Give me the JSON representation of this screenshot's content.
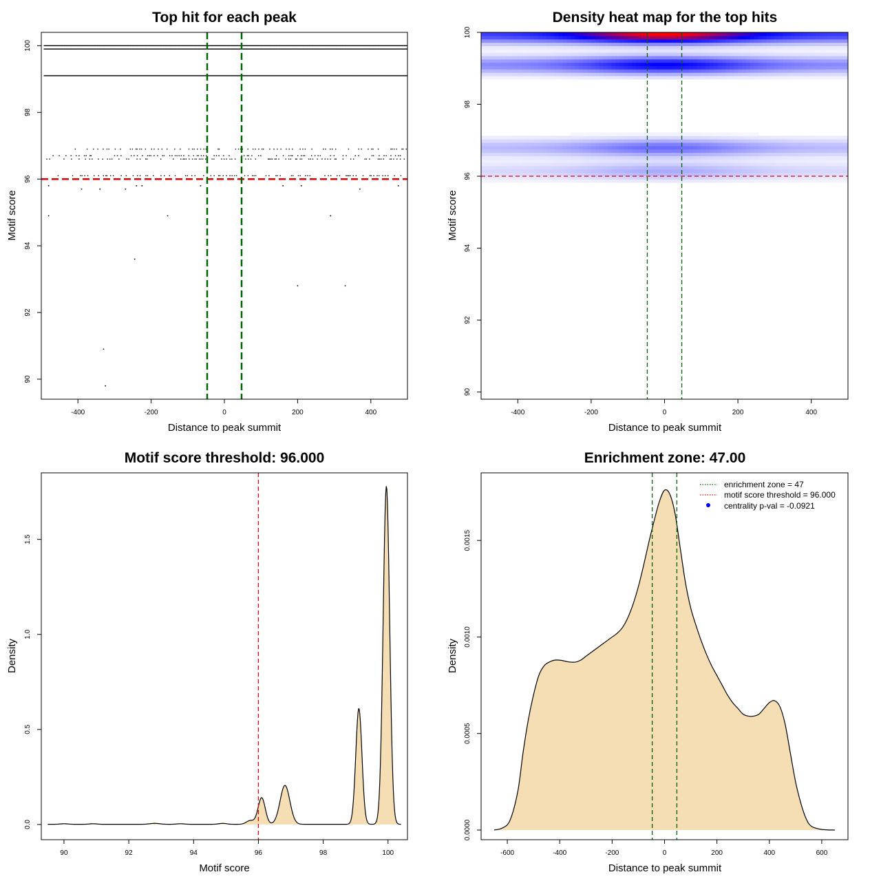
{
  "chart_data": [
    {
      "type": "scatter",
      "title": "Top hit for each peak",
      "xlabel": "Distance to peak summit",
      "ylabel": "Motif score",
      "xlim": [
        -500,
        500
      ],
      "ylim": [
        89.4,
        100.4
      ],
      "xticks": [
        -400,
        -200,
        0,
        200,
        400
      ],
      "yticks": [
        90,
        92,
        94,
        96,
        98,
        100
      ],
      "rows": [
        {
          "y": 100.0,
          "x_from": -492,
          "x_to": 498,
          "style": "dense"
        },
        {
          "y": 99.9,
          "x_from": -492,
          "x_to": 498,
          "style": "dense"
        },
        {
          "y": 99.1,
          "x_from": -492,
          "x_to": 498,
          "style": "dense"
        },
        {
          "y": 96.9,
          "x_from": -430,
          "x_to": 498,
          "style": "sparse"
        },
        {
          "y": 96.7,
          "x_from": -485,
          "x_to": 498,
          "style": "sparse"
        },
        {
          "y": 96.6,
          "x_from": -485,
          "x_to": 498,
          "style": "sparse"
        },
        {
          "y": 96.1,
          "x_from": -485,
          "x_to": 498,
          "style": "sparse"
        }
      ],
      "points": [
        {
          "x": -480,
          "y": 95.8
        },
        {
          "x": -390,
          "y": 95.7
        },
        {
          "x": -340,
          "y": 95.7
        },
        {
          "x": -270,
          "y": 95.7
        },
        {
          "x": -240,
          "y": 95.8
        },
        {
          "x": -225,
          "y": 95.8
        },
        {
          "x": -65,
          "y": 95.8
        },
        {
          "x": 160,
          "y": 95.8
        },
        {
          "x": 210,
          "y": 95.8
        },
        {
          "x": 370,
          "y": 95.7
        },
        {
          "x": 475,
          "y": 95.8
        },
        {
          "x": -480,
          "y": 94.9
        },
        {
          "x": -155,
          "y": 94.9
        },
        {
          "x": 290,
          "y": 94.9
        },
        {
          "x": -245,
          "y": 93.6
        },
        {
          "x": 200,
          "y": 92.8
        },
        {
          "x": 330,
          "y": 92.8
        },
        {
          "x": -330,
          "y": 90.9
        },
        {
          "x": -325,
          "y": 89.8
        }
      ],
      "hlines": [
        {
          "y": 96,
          "color": "#e00000",
          "style": "dashed"
        }
      ],
      "vlines": [
        {
          "x": -47,
          "color": "#006400",
          "style": "dashed"
        },
        {
          "x": 47,
          "color": "#006400",
          "style": "dashed"
        }
      ]
    },
    {
      "type": "heatmap",
      "title": "Density heat map for the top hits",
      "xlabel": "Distance to peak summit",
      "ylabel": "Motif score",
      "xlim": [
        -500,
        500
      ],
      "ylim": [
        89.8,
        100.0
      ],
      "xticks": [
        -400,
        -200,
        0,
        200,
        400
      ],
      "yticks": [
        90,
        92,
        94,
        96,
        98,
        100
      ],
      "colors": {
        "low": "#ffffff",
        "mid": "#0000ff",
        "high": "#ff0000"
      },
      "bands": [
        {
          "y": 99.95,
          "weight": 1.0
        },
        {
          "y": 99.1,
          "weight": 0.6
        },
        {
          "y": 96.8,
          "weight": 0.35
        },
        {
          "y": 96.15,
          "weight": 0.2
        }
      ],
      "hlines": [
        {
          "y": 96,
          "color": "#e00000",
          "style": "dashed"
        }
      ],
      "vlines": [
        {
          "x": -47,
          "color": "#006400",
          "style": "dashed"
        },
        {
          "x": 47,
          "color": "#006400",
          "style": "dashed"
        }
      ]
    },
    {
      "type": "area",
      "title": "Motif score threshold: 96.000",
      "xlabel": "Motif score",
      "ylabel": "Density",
      "xlim": [
        89.3,
        100.6
      ],
      "ylim": [
        -0.08,
        1.85
      ],
      "xticks": [
        90,
        92,
        94,
        96,
        98,
        100
      ],
      "yticks": [
        0.0,
        0.5,
        1.0,
        1.5
      ],
      "ytick_labels": [
        "0.0",
        "0.5",
        "1.0",
        "1.5"
      ],
      "fill": "#f5deb3",
      "x_range": [
        89.5,
        100.4
      ],
      "baseline": 0.001,
      "peaks": [
        {
          "x": 90.0,
          "y": 0.003,
          "sd": 0.12
        },
        {
          "x": 90.9,
          "y": 0.003,
          "sd": 0.12
        },
        {
          "x": 92.8,
          "y": 0.005,
          "sd": 0.15
        },
        {
          "x": 93.6,
          "y": 0.003,
          "sd": 0.12
        },
        {
          "x": 94.9,
          "y": 0.005,
          "sd": 0.12
        },
        {
          "x": 95.75,
          "y": 0.02,
          "sd": 0.12
        },
        {
          "x": 96.1,
          "y": 0.14,
          "sd": 0.11
        },
        {
          "x": 96.82,
          "y": 0.205,
          "sd": 0.15
        },
        {
          "x": 99.1,
          "y": 0.61,
          "sd": 0.095
        },
        {
          "x": 99.95,
          "y": 1.78,
          "sd": 0.1
        }
      ],
      "vlines": [
        {
          "x": 96,
          "color": "#e00000",
          "style": "dashed"
        }
      ]
    },
    {
      "type": "area",
      "title": "Enrichment zone: 47.00",
      "xlabel": "Distance to peak summit",
      "ylabel": "Density",
      "xlim": [
        -700,
        700
      ],
      "ylim": [
        -5e-05,
        0.00185
      ],
      "xticks": [
        -600,
        -400,
        -200,
        0,
        200,
        400,
        600
      ],
      "yticks": [
        0.0,
        0.0005,
        0.001,
        0.0015
      ],
      "ytick_labels": [
        "0.0000",
        "0.0005",
        "0.0010",
        "0.0015"
      ],
      "fill": "#f5deb3",
      "points": [
        [
          -650,
          0.0
        ],
        [
          -620,
          1e-05
        ],
        [
          -590,
          5e-05
        ],
        [
          -560,
          0.0002
        ],
        [
          -540,
          0.0004
        ],
        [
          -520,
          0.00057
        ],
        [
          -500,
          0.0007
        ],
        [
          -480,
          0.0008
        ],
        [
          -460,
          0.00085
        ],
        [
          -440,
          0.00087
        ],
        [
          -420,
          0.00088
        ],
        [
          -400,
          0.00088
        ],
        [
          -380,
          0.000875
        ],
        [
          -360,
          0.00087
        ],
        [
          -340,
          0.00087
        ],
        [
          -320,
          0.00088
        ],
        [
          -300,
          0.0009
        ],
        [
          -280,
          0.00092
        ],
        [
          -260,
          0.00094
        ],
        [
          -240,
          0.00096
        ],
        [
          -220,
          0.00098
        ],
        [
          -200,
          0.001
        ],
        [
          -180,
          0.00102
        ],
        [
          -160,
          0.00105
        ],
        [
          -140,
          0.0011
        ],
        [
          -120,
          0.00117
        ],
        [
          -100,
          0.00126
        ],
        [
          -80,
          0.00137
        ],
        [
          -60,
          0.00149
        ],
        [
          -40,
          0.0016
        ],
        [
          -20,
          0.0017
        ],
        [
          0,
          0.00176
        ],
        [
          20,
          0.00174
        ],
        [
          40,
          0.00164
        ],
        [
          60,
          0.00146
        ],
        [
          80,
          0.00128
        ],
        [
          100,
          0.00115
        ],
        [
          120,
          0.00106
        ],
        [
          140,
          0.00098
        ],
        [
          160,
          0.00091
        ],
        [
          180,
          0.00085
        ],
        [
          200,
          0.0008
        ],
        [
          220,
          0.00075
        ],
        [
          240,
          0.0007
        ],
        [
          260,
          0.00066
        ],
        [
          280,
          0.00063
        ],
        [
          300,
          0.0006
        ],
        [
          320,
          0.00059
        ],
        [
          340,
          0.00059
        ],
        [
          360,
          0.0006
        ],
        [
          380,
          0.00063
        ],
        [
          400,
          0.00066
        ],
        [
          420,
          0.00067
        ],
        [
          440,
          0.00064
        ],
        [
          460,
          0.00055
        ],
        [
          480,
          0.0004
        ],
        [
          500,
          0.00025
        ],
        [
          520,
          0.00014
        ],
        [
          540,
          6e-05
        ],
        [
          560,
          2e-05
        ],
        [
          600,
          3e-06
        ],
        [
          650,
          0.0
        ]
      ],
      "vlines": [
        {
          "x": -47,
          "color": "#006400",
          "style": "dashed"
        },
        {
          "x": 47,
          "color": "#006400",
          "style": "dashed"
        }
      ],
      "legend": [
        {
          "label": "enrichment zone = 47",
          "color": "#006400",
          "kind": "dotted-line"
        },
        {
          "label": "motif score threshold = 96.000",
          "color": "#e00000",
          "kind": "dotted-line"
        },
        {
          "label": "centrality p-val = -0.0921",
          "color": "#0000ff",
          "kind": "point"
        }
      ],
      "legend_position": "top-right"
    }
  ]
}
